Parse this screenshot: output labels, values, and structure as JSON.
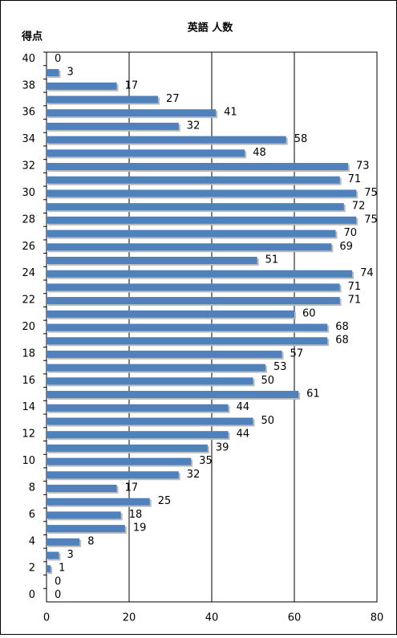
{
  "chart_data": {
    "type": "bar",
    "orientation": "horizontal",
    "title": "英語 人数",
    "y_label": "得点",
    "categories": [
      "40",
      null,
      "38",
      null,
      "36",
      null,
      "34",
      null,
      "32",
      null,
      "30",
      null,
      "28",
      null,
      "26",
      null,
      "24",
      null,
      "22",
      null,
      "20",
      null,
      "18",
      null,
      "16",
      null,
      "14",
      null,
      "12",
      null,
      "10",
      null,
      "8",
      null,
      "6",
      null,
      "4",
      null,
      "2",
      null,
      "0"
    ],
    "values": [
      0,
      3,
      17,
      27,
      41,
      32,
      58,
      48,
      73,
      71,
      75,
      72,
      75,
      70,
      69,
      51,
      74,
      71,
      71,
      60,
      68,
      68,
      57,
      53,
      50,
      61,
      44,
      50,
      44,
      39,
      35,
      32,
      17,
      25,
      18,
      19,
      8,
      3,
      1,
      0,
      0
    ],
    "color": "#4f81bd",
    "xlim": [
      0,
      80
    ],
    "xticks": [
      0,
      20,
      40,
      60,
      80
    ],
    "grid": true
  }
}
